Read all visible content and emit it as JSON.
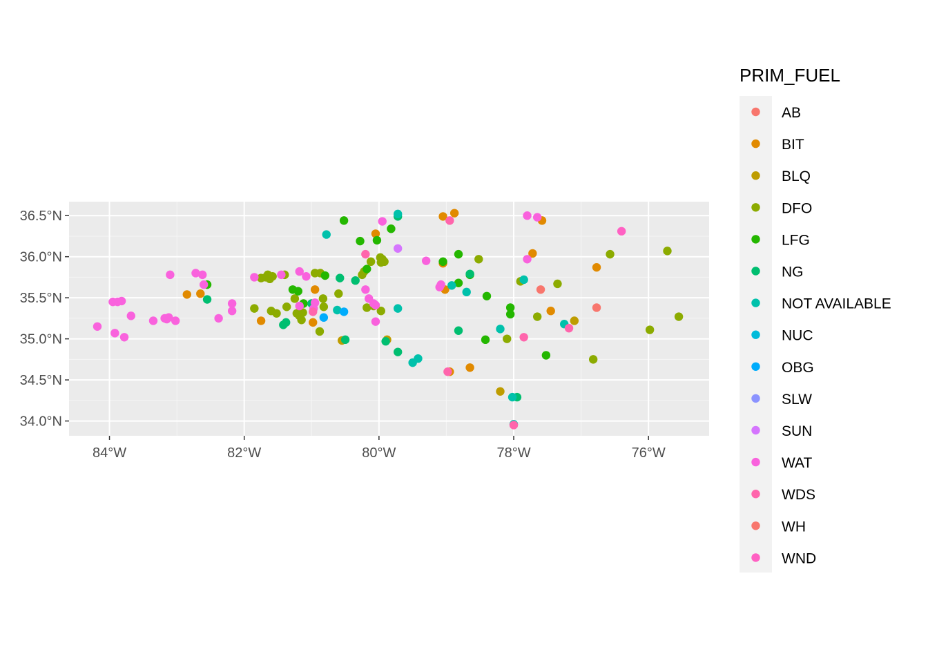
{
  "chart_data": {
    "type": "scatter",
    "title": "",
    "xlabel": "",
    "ylabel": "",
    "xlim": [
      -84.6,
      -75.1
    ],
    "ylim": [
      33.82,
      36.67
    ],
    "x_ticks": [
      -84,
      -82,
      -80,
      -78,
      -76
    ],
    "x_tick_labels": [
      "84°W",
      "82°W",
      "80°W",
      "78°W",
      "76°W"
    ],
    "y_ticks": [
      34.0,
      34.5,
      35.0,
      35.5,
      36.0,
      36.5
    ],
    "y_tick_labels": [
      "34.0°N",
      "34.5°N",
      "35.0°N",
      "35.5°N",
      "36.0°N",
      "36.5°N"
    ],
    "grid": true,
    "legend": {
      "title": "PRIM_FUEL",
      "position": "right",
      "entries": [
        {
          "name": "AB",
          "color": "#F8766D"
        },
        {
          "name": "BIT",
          "color": "#E18A00"
        },
        {
          "name": "BLQ",
          "color": "#BE9C00"
        },
        {
          "name": "DFO",
          "color": "#8CAB00"
        },
        {
          "name": "LFG",
          "color": "#24B700"
        },
        {
          "name": "NG",
          "color": "#00BE70"
        },
        {
          "name": "NOT AVAILABLE",
          "color": "#00C1AB"
        },
        {
          "name": "NUC",
          "color": "#00BBDA"
        },
        {
          "name": "OBG",
          "color": "#00ACFC"
        },
        {
          "name": "SLW",
          "color": "#8B93FF"
        },
        {
          "name": "SUN",
          "color": "#D575FE"
        },
        {
          "name": "WAT",
          "color": "#F962DD"
        },
        {
          "name": "WDS",
          "color": "#FF65AC"
        },
        {
          "name": "WH",
          "color": "#F8766D"
        },
        {
          "name": "WND",
          "color": "#FF61C3"
        }
      ]
    },
    "series": [
      {
        "name": "AB",
        "points": [
          [
            -77.6,
            35.6
          ]
        ]
      },
      {
        "name": "BIT",
        "points": [
          [
            -82.85,
            35.54
          ],
          [
            -82.65,
            35.55
          ],
          [
            -81.75,
            35.22
          ],
          [
            -80.95,
            35.6
          ],
          [
            -80.98,
            35.2
          ],
          [
            -80.05,
            36.28
          ],
          [
            -79.05,
            36.49
          ],
          [
            -78.88,
            36.53
          ],
          [
            -79.05,
            35.92
          ],
          [
            -79.02,
            35.6
          ],
          [
            -78.95,
            34.6
          ],
          [
            -78.65,
            34.65
          ],
          [
            -77.72,
            36.04
          ],
          [
            -77.58,
            36.44
          ],
          [
            -77.45,
            35.34
          ],
          [
            -76.77,
            35.87
          ]
        ]
      },
      {
        "name": "BLQ",
        "points": [
          [
            -80.55,
            34.98
          ],
          [
            -79.88,
            34.99
          ],
          [
            -78.2,
            34.36
          ],
          [
            -77.1,
            35.22
          ]
        ]
      },
      {
        "name": "DFO",
        "points": [
          [
            -81.85,
            35.37
          ],
          [
            -81.75,
            35.74
          ],
          [
            -81.68,
            35.75
          ],
          [
            -81.65,
            35.78
          ],
          [
            -81.62,
            35.73
          ],
          [
            -81.58,
            35.76
          ],
          [
            -81.6,
            35.34
          ],
          [
            -81.52,
            35.31
          ],
          [
            -81.4,
            35.78
          ],
          [
            -81.37,
            35.39
          ],
          [
            -81.25,
            35.49
          ],
          [
            -81.22,
            35.31
          ],
          [
            -81.18,
            35.28
          ],
          [
            -81.15,
            35.23
          ],
          [
            -81.13,
            35.32
          ],
          [
            -80.95,
            35.8
          ],
          [
            -80.87,
            35.8
          ],
          [
            -80.83,
            35.49
          ],
          [
            -80.82,
            35.39
          ],
          [
            -80.88,
            35.09
          ],
          [
            -80.6,
            35.55
          ],
          [
            -80.25,
            35.78
          ],
          [
            -80.22,
            35.82
          ],
          [
            -80.18,
            35.38
          ],
          [
            -80.12,
            35.94
          ],
          [
            -80.08,
            35.4
          ],
          [
            -79.98,
            35.99
          ],
          [
            -79.95,
            35.97
          ],
          [
            -79.92,
            35.94
          ],
          [
            -79.97,
            35.34
          ],
          [
            -79.97,
            35.93
          ],
          [
            -78.52,
            35.97
          ],
          [
            -78.1,
            35.0
          ],
          [
            -77.9,
            35.7
          ],
          [
            -77.65,
            35.27
          ],
          [
            -77.35,
            35.67
          ],
          [
            -76.82,
            34.75
          ],
          [
            -76.57,
            36.03
          ],
          [
            -75.98,
            35.11
          ],
          [
            -75.72,
            36.07
          ],
          [
            -75.55,
            35.27
          ]
        ]
      },
      {
        "name": "LFG",
        "points": [
          [
            -82.55,
            35.66
          ],
          [
            -81.28,
            35.6
          ],
          [
            -81.2,
            35.58
          ],
          [
            -81.12,
            35.43
          ],
          [
            -80.8,
            35.77
          ],
          [
            -80.52,
            36.44
          ],
          [
            -80.28,
            36.19
          ],
          [
            -80.18,
            35.85
          ],
          [
            -80.03,
            36.2
          ],
          [
            -79.82,
            36.34
          ],
          [
            -79.05,
            35.94
          ],
          [
            -78.82,
            35.68
          ],
          [
            -78.82,
            36.03
          ],
          [
            -78.65,
            35.78
          ],
          [
            -78.4,
            35.52
          ],
          [
            -78.42,
            34.99
          ],
          [
            -78.05,
            35.38
          ],
          [
            -78.05,
            35.3
          ],
          [
            -77.52,
            34.8
          ]
        ]
      },
      {
        "name": "NG",
        "points": [
          [
            -82.55,
            35.48
          ],
          [
            -81.38,
            35.2
          ],
          [
            -81.42,
            35.17
          ],
          [
            -81.0,
            35.43
          ],
          [
            -80.58,
            35.74
          ],
          [
            -80.5,
            34.99
          ],
          [
            -80.35,
            35.71
          ],
          [
            -79.9,
            34.97
          ],
          [
            -79.72,
            36.49
          ],
          [
            -79.72,
            34.84
          ],
          [
            -78.82,
            35.1
          ],
          [
            -78.65,
            35.79
          ],
          [
            -77.95,
            34.29
          ]
        ]
      },
      {
        "name": "NOT AVAILABLE",
        "points": [
          [
            -80.78,
            36.27
          ],
          [
            -80.62,
            35.35
          ],
          [
            -79.72,
            36.52
          ],
          [
            -79.72,
            35.37
          ],
          [
            -79.5,
            34.71
          ],
          [
            -79.42,
            34.76
          ],
          [
            -78.92,
            35.65
          ],
          [
            -78.7,
            35.57
          ],
          [
            -78.2,
            35.12
          ],
          [
            -78.02,
            34.29
          ],
          [
            -77.85,
            35.72
          ],
          [
            -77.25,
            35.18
          ],
          [
            -78.0,
            33.96
          ]
        ]
      },
      {
        "name": "OBG",
        "points": [
          [
            -80.82,
            35.26
          ],
          [
            -80.52,
            35.33
          ]
        ]
      },
      {
        "name": "SUN",
        "points": [
          [
            -79.72,
            36.1
          ]
        ]
      },
      {
        "name": "WAT",
        "points": [
          [
            -84.18,
            35.15
          ],
          [
            -83.95,
            35.45
          ],
          [
            -83.88,
            35.45
          ],
          [
            -83.82,
            35.46
          ],
          [
            -83.92,
            35.07
          ],
          [
            -83.78,
            35.02
          ],
          [
            -83.68,
            35.28
          ],
          [
            -83.35,
            35.22
          ],
          [
            -83.18,
            35.25
          ],
          [
            -83.15,
            35.24
          ],
          [
            -83.12,
            35.26
          ],
          [
            -83.02,
            35.22
          ],
          [
            -83.1,
            35.78
          ],
          [
            -82.72,
            35.8
          ],
          [
            -82.62,
            35.78
          ],
          [
            -82.6,
            35.66
          ],
          [
            -82.38,
            35.25
          ],
          [
            -82.18,
            35.43
          ],
          [
            -82.18,
            35.34
          ],
          [
            -81.85,
            35.75
          ],
          [
            -81.45,
            35.78
          ],
          [
            -81.18,
            35.82
          ],
          [
            -81.08,
            35.76
          ],
          [
            -81.18,
            35.4
          ],
          [
            -80.95,
            35.44
          ],
          [
            -80.97,
            35.37
          ],
          [
            -80.2,
            35.6
          ],
          [
            -80.15,
            35.49
          ],
          [
            -80.08,
            35.43
          ],
          [
            -80.05,
            35.41
          ],
          [
            -80.05,
            35.21
          ],
          [
            -79.95,
            36.43
          ],
          [
            -79.3,
            35.95
          ],
          [
            -79.08,
            35.66
          ],
          [
            -79.1,
            35.63
          ],
          [
            -77.8,
            36.5
          ],
          [
            -77.65,
            36.48
          ],
          [
            -77.8,
            35.97
          ]
        ]
      },
      {
        "name": "WDS",
        "points": [
          [
            -80.98,
            35.33
          ],
          [
            -80.2,
            36.03
          ],
          [
            -78.95,
            36.44
          ],
          [
            -78.98,
            34.6
          ],
          [
            -77.85,
            35.02
          ],
          [
            -77.18,
            35.13
          ],
          [
            -78.0,
            33.95
          ]
        ]
      },
      {
        "name": "WH",
        "points": [
          [
            -76.77,
            35.38
          ]
        ]
      },
      {
        "name": "WND",
        "points": [
          [
            -76.4,
            36.31
          ]
        ]
      }
    ]
  }
}
